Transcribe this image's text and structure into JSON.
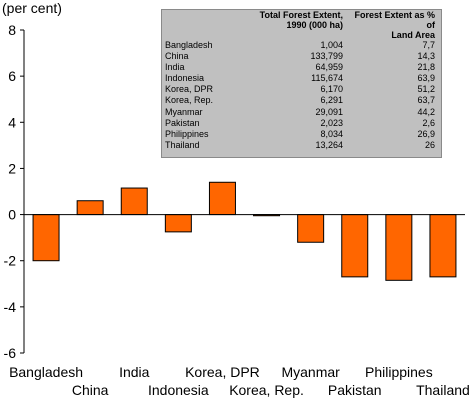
{
  "unit_label": "(per cent)",
  "chart_data": {
    "type": "bar",
    "title": "",
    "xlabel": "",
    "ylabel": "(per cent)",
    "ylim": [
      -6,
      8
    ],
    "yticks": [
      8,
      6,
      4,
      2,
      0,
      -2,
      -4,
      -6
    ],
    "categories": [
      "Bangladesh",
      "China",
      "India",
      "Indonesia",
      "Korea, DPR",
      "Korea, Rep.",
      "Myanmar",
      "Pakistan",
      "Philippines",
      "Thailand"
    ],
    "values": [
      -2.0,
      0.6,
      1.15,
      -0.75,
      1.4,
      -0.05,
      -1.2,
      -2.7,
      -2.85,
      -2.7
    ],
    "bar_color": "#ff6600",
    "grid": false,
    "legend": "none"
  },
  "inset_table": {
    "headers": [
      "",
      "Total Forest Extent,\n1990 (000 ha)",
      "Forest Extent as % of\nLand Area"
    ],
    "rows": [
      [
        "Bangladesh",
        "1,004",
        "7,7"
      ],
      [
        "China",
        "133,799",
        "14,3"
      ],
      [
        "India",
        "64,959",
        "21,8"
      ],
      [
        "Indonesia",
        "115,674",
        "63,9"
      ],
      [
        "Korea, DPR",
        "6,170",
        "51,2"
      ],
      [
        "Korea, Rep.",
        "6,291",
        "63,7"
      ],
      [
        "Myanmar",
        "29,091",
        "44,2"
      ],
      [
        "Pakistan",
        "2,023",
        "2,6"
      ],
      [
        "Philippines",
        "8,034",
        "26,9"
      ],
      [
        "Thailand",
        "13,264",
        "26"
      ]
    ]
  }
}
